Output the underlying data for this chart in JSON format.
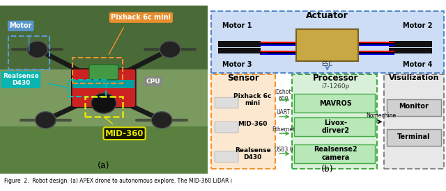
{
  "fig_width": 6.4,
  "fig_height": 2.75,
  "dpi": 100,
  "bg_color": "#ffffff",
  "caption": "Figure  2.  Robot design. (a) APEX drone to autonomous explore. The MID-360 LiDAR i",
  "panel_a": {
    "label": "(a)",
    "bg_color": "#6b8f5a",
    "motor_label": "Motor",
    "motor_label_color": "#5b9bd5",
    "pixhack_label": "Pixhack 6c mini",
    "pixhack_label_color": "#f5922e",
    "realsense_label": "Realsense\nD430",
    "realsense_label_color": "#00b8b8",
    "cpu_label": "CPU",
    "cpu_label_color": "#aaaaaa",
    "mid360_label": "MID-360",
    "mid360_label_color": "#e8e800"
  },
  "panel_b": {
    "label": "(b)",
    "actuator_title": "Actuator",
    "motor1": "Motor 1",
    "motor2": "Motor 2",
    "motor3": "Motor 3",
    "motor4": "Motor 4",
    "esc": "ESC",
    "sensor_title": "Sensor",
    "sensor_items": [
      "Pixhack 6c\nmini",
      "MID-360",
      "Realsense\nD430"
    ],
    "processor_title": "Processor",
    "processor_sub": "i7-1260p",
    "processor_items": [
      "MAVROS",
      "Livox-\ndirver2",
      "Realsense2\ncamera"
    ],
    "vis_title": "Visulization",
    "vis_items": [
      "Monitor",
      "Terminal"
    ],
    "conn_labels": [
      "Dshot\n600",
      "UART",
      "Ethernet",
      "USB3.0"
    ],
    "nomechine": "Nomechine",
    "actuator_bg": "#ccddf5",
    "actuator_edge": "#5588cc",
    "sensor_bg": "#fce8d0",
    "sensor_edge": "#f5922e",
    "processor_bg": "#d8f0d8",
    "processor_edge": "#44aa44",
    "proc_item_bg": "#b8e8b8",
    "proc_item_edge": "#44aa44",
    "vis_bg": "#e8e8e8",
    "vis_edge": "#888888",
    "vis_item_bg": "#d0d0d0",
    "vis_item_edge": "#888888"
  }
}
